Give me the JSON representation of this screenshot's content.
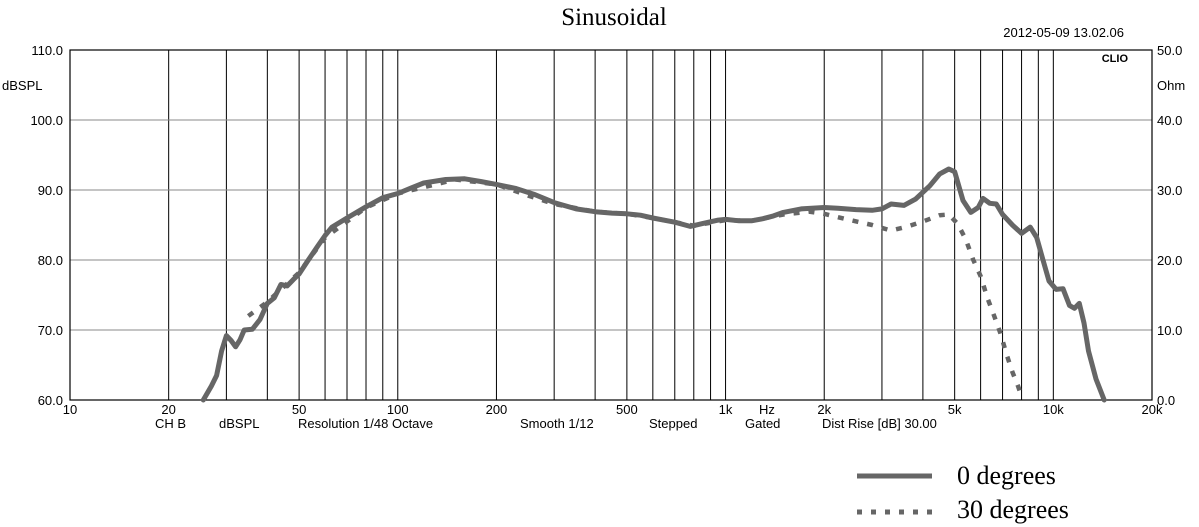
{
  "chart_data": {
    "type": "line",
    "title": "Sinusoidal",
    "timestamp": "2012-05-09 13.02.06",
    "brand": "CLIO",
    "x_scale": "log",
    "xlim": [
      10,
      20000
    ],
    "ylim": [
      60,
      110
    ],
    "y2lim": [
      0,
      50
    ],
    "grid": true,
    "legend_position": "bottom-right",
    "ylabel": "dBSPL",
    "y2label": "Ohm",
    "x_unit_label": "Hz",
    "x_ticks": [
      10,
      20,
      50,
      100,
      200,
      500,
      1000,
      2000,
      5000,
      10000,
      20000
    ],
    "x_tick_labels": [
      "10",
      "20",
      "50",
      "100",
      "200",
      "500",
      "1k",
      "2k",
      "5k",
      "10k",
      "20k"
    ],
    "y_ticks": [
      60,
      70,
      80,
      90,
      100,
      110
    ],
    "y_tick_labels": [
      "60.0",
      "70.0",
      "80.0",
      "90.0",
      "100.0",
      "110.0"
    ],
    "y2_tick_labels": [
      "0.0",
      "10.0",
      "20.0",
      "30.0",
      "40.0",
      "50.0"
    ],
    "footer": {
      "channel": "CH B",
      "unit": "dBSPL",
      "resolution": "Resolution 1/48 Octave",
      "smooth": "Smooth 1/12",
      "mode": "Stepped",
      "gating": "Gated",
      "dist_rise": "Dist Rise [dB] 30.00"
    },
    "series_color": "#666666",
    "series": [
      {
        "name": "0 degrees",
        "style": "solid",
        "points": [
          [
            25.5,
            60
          ],
          [
            27,
            62
          ],
          [
            28,
            63.5
          ],
          [
            29,
            67
          ],
          [
            30,
            69.2
          ],
          [
            31,
            68.5
          ],
          [
            32,
            67.6
          ],
          [
            33,
            68.6
          ],
          [
            34,
            70
          ],
          [
            36,
            70.1
          ],
          [
            38,
            71.5
          ],
          [
            40,
            73.8
          ],
          [
            42,
            74.6
          ],
          [
            44,
            76.5
          ],
          [
            46,
            76.3
          ],
          [
            48,
            77.2
          ],
          [
            50,
            78
          ],
          [
            53,
            79.8
          ],
          [
            57,
            82
          ],
          [
            60,
            83.5
          ],
          [
            63,
            84.7
          ],
          [
            70,
            86
          ],
          [
            80,
            87.6
          ],
          [
            90,
            88.9
          ],
          [
            100,
            89.5
          ],
          [
            110,
            90.3
          ],
          [
            120,
            91
          ],
          [
            140,
            91.5
          ],
          [
            160,
            91.6
          ],
          [
            180,
            91.2
          ],
          [
            200,
            90.8
          ],
          [
            230,
            90.2
          ],
          [
            260,
            89.4
          ],
          [
            300,
            88.2
          ],
          [
            350,
            87.3
          ],
          [
            400,
            86.9
          ],
          [
            450,
            86.7
          ],
          [
            500,
            86.6
          ],
          [
            550,
            86.4
          ],
          [
            600,
            86
          ],
          [
            700,
            85.4
          ],
          [
            780,
            84.8
          ],
          [
            850,
            85.2
          ],
          [
            950,
            85.7
          ],
          [
            1000,
            85.8
          ],
          [
            1100,
            85.6
          ],
          [
            1200,
            85.6
          ],
          [
            1300,
            85.9
          ],
          [
            1400,
            86.3
          ],
          [
            1500,
            86.8
          ],
          [
            1700,
            87.3
          ],
          [
            2000,
            87.5
          ],
          [
            2200,
            87.4
          ],
          [
            2500,
            87.2
          ],
          [
            2800,
            87.1
          ],
          [
            3000,
            87.3
          ],
          [
            3200,
            88
          ],
          [
            3500,
            87.8
          ],
          [
            3800,
            88.7
          ],
          [
            4200,
            90.6
          ],
          [
            4500,
            92.3
          ],
          [
            4800,
            93
          ],
          [
            5000,
            92.6
          ],
          [
            5300,
            88.5
          ],
          [
            5600,
            86.8
          ],
          [
            5900,
            87.5
          ],
          [
            6100,
            88.8
          ],
          [
            6400,
            88.1
          ],
          [
            6700,
            88
          ],
          [
            7000,
            86.5
          ],
          [
            7500,
            85
          ],
          [
            8000,
            83.8
          ],
          [
            8500,
            84.7
          ],
          [
            8900,
            83.2
          ],
          [
            9300,
            80
          ],
          [
            9700,
            77
          ],
          [
            10200,
            75.8
          ],
          [
            10700,
            75.9
          ],
          [
            11200,
            73.5
          ],
          [
            11600,
            73.1
          ],
          [
            12000,
            73.8
          ],
          [
            12400,
            71
          ],
          [
            12800,
            67
          ],
          [
            13500,
            63
          ],
          [
            14300,
            60
          ]
        ]
      },
      {
        "name": "30 degrees",
        "style": "dotted",
        "points": [
          [
            35,
            72
          ],
          [
            40,
            74
          ],
          [
            50,
            78.2
          ],
          [
            60,
            83.2
          ],
          [
            80,
            87.5
          ],
          [
            100,
            89.5
          ],
          [
            150,
            91.5
          ],
          [
            200,
            90.8
          ],
          [
            250,
            89.2
          ],
          [
            300,
            88
          ],
          [
            400,
            86.9
          ],
          [
            500,
            86.6
          ],
          [
            600,
            86
          ],
          [
            700,
            85.4
          ],
          [
            800,
            84.9
          ],
          [
            1000,
            85.7
          ],
          [
            1200,
            85.6
          ],
          [
            1500,
            86.5
          ],
          [
            1800,
            86.9
          ],
          [
            2000,
            86.6
          ],
          [
            2300,
            85.9
          ],
          [
            2800,
            85
          ],
          [
            3200,
            84.2
          ],
          [
            3600,
            84.8
          ],
          [
            4000,
            85.5
          ],
          [
            4500,
            86.4
          ],
          [
            4800,
            86.5
          ],
          [
            5100,
            85.2
          ],
          [
            5400,
            83
          ],
          [
            5700,
            80
          ],
          [
            6000,
            77.7
          ],
          [
            6300,
            74.5
          ],
          [
            6600,
            72
          ],
          [
            6900,
            69.5
          ],
          [
            7200,
            66.5
          ],
          [
            7500,
            64
          ],
          [
            7800,
            62
          ],
          [
            8000,
            60.5
          ]
        ]
      }
    ]
  }
}
